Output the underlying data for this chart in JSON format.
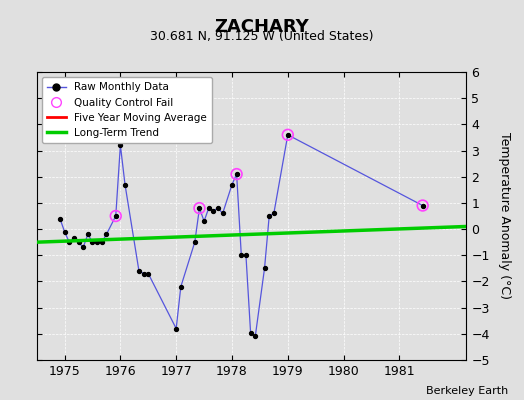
{
  "title": "ZACHARY",
  "subtitle": "30.681 N, 91.125 W (United States)",
  "ylabel": "Temperature Anomaly (°C)",
  "attribution": "Berkeley Earth",
  "ylim": [
    -5,
    6
  ],
  "xlim": [
    1974.5,
    1982.2
  ],
  "xticks": [
    1975,
    1976,
    1977,
    1978,
    1979,
    1980,
    1981
  ],
  "yticks": [
    -5,
    -4,
    -3,
    -2,
    -1,
    0,
    1,
    2,
    3,
    4,
    5,
    6
  ],
  "background_color": "#e0e0e0",
  "raw_x": [
    1974.917,
    1975.0,
    1975.083,
    1975.167,
    1975.25,
    1975.333,
    1975.417,
    1975.5,
    1975.583,
    1975.667,
    1975.75,
    1975.917,
    1976.0,
    1976.083,
    1976.333,
    1976.417,
    1976.5,
    1977.0,
    1977.083,
    1977.333,
    1977.417,
    1977.5,
    1977.583,
    1977.667,
    1977.75,
    1977.833,
    1978.0,
    1978.083,
    1978.167,
    1978.25,
    1978.333,
    1978.417,
    1978.583,
    1978.667,
    1978.75,
    1979.0,
    1981.417
  ],
  "raw_y": [
    0.4,
    -0.1,
    -0.5,
    -0.35,
    -0.5,
    -0.7,
    -0.2,
    -0.5,
    -0.5,
    -0.5,
    -0.2,
    0.5,
    3.2,
    1.7,
    -1.6,
    -1.7,
    -1.7,
    -3.8,
    -2.2,
    -0.5,
    0.8,
    0.3,
    0.8,
    0.7,
    0.8,
    0.6,
    1.7,
    2.1,
    -1.0,
    -1.0,
    -3.95,
    -4.1,
    -1.5,
    0.5,
    0.6,
    3.6,
    0.9
  ],
  "qc_fail_x": [
    1975.917,
    1977.417,
    1978.083,
    1979.0,
    1981.417
  ],
  "qc_fail_y": [
    0.5,
    0.8,
    2.1,
    3.6,
    0.9
  ],
  "trend_x": [
    1974.5,
    1982.2
  ],
  "trend_y": [
    -0.5,
    0.1
  ],
  "line_color": "#5555dd",
  "marker_color": "#000000",
  "qc_color": "#ff44ff",
  "trend_color": "#00cc00",
  "moving_avg_color": "#ff0000"
}
